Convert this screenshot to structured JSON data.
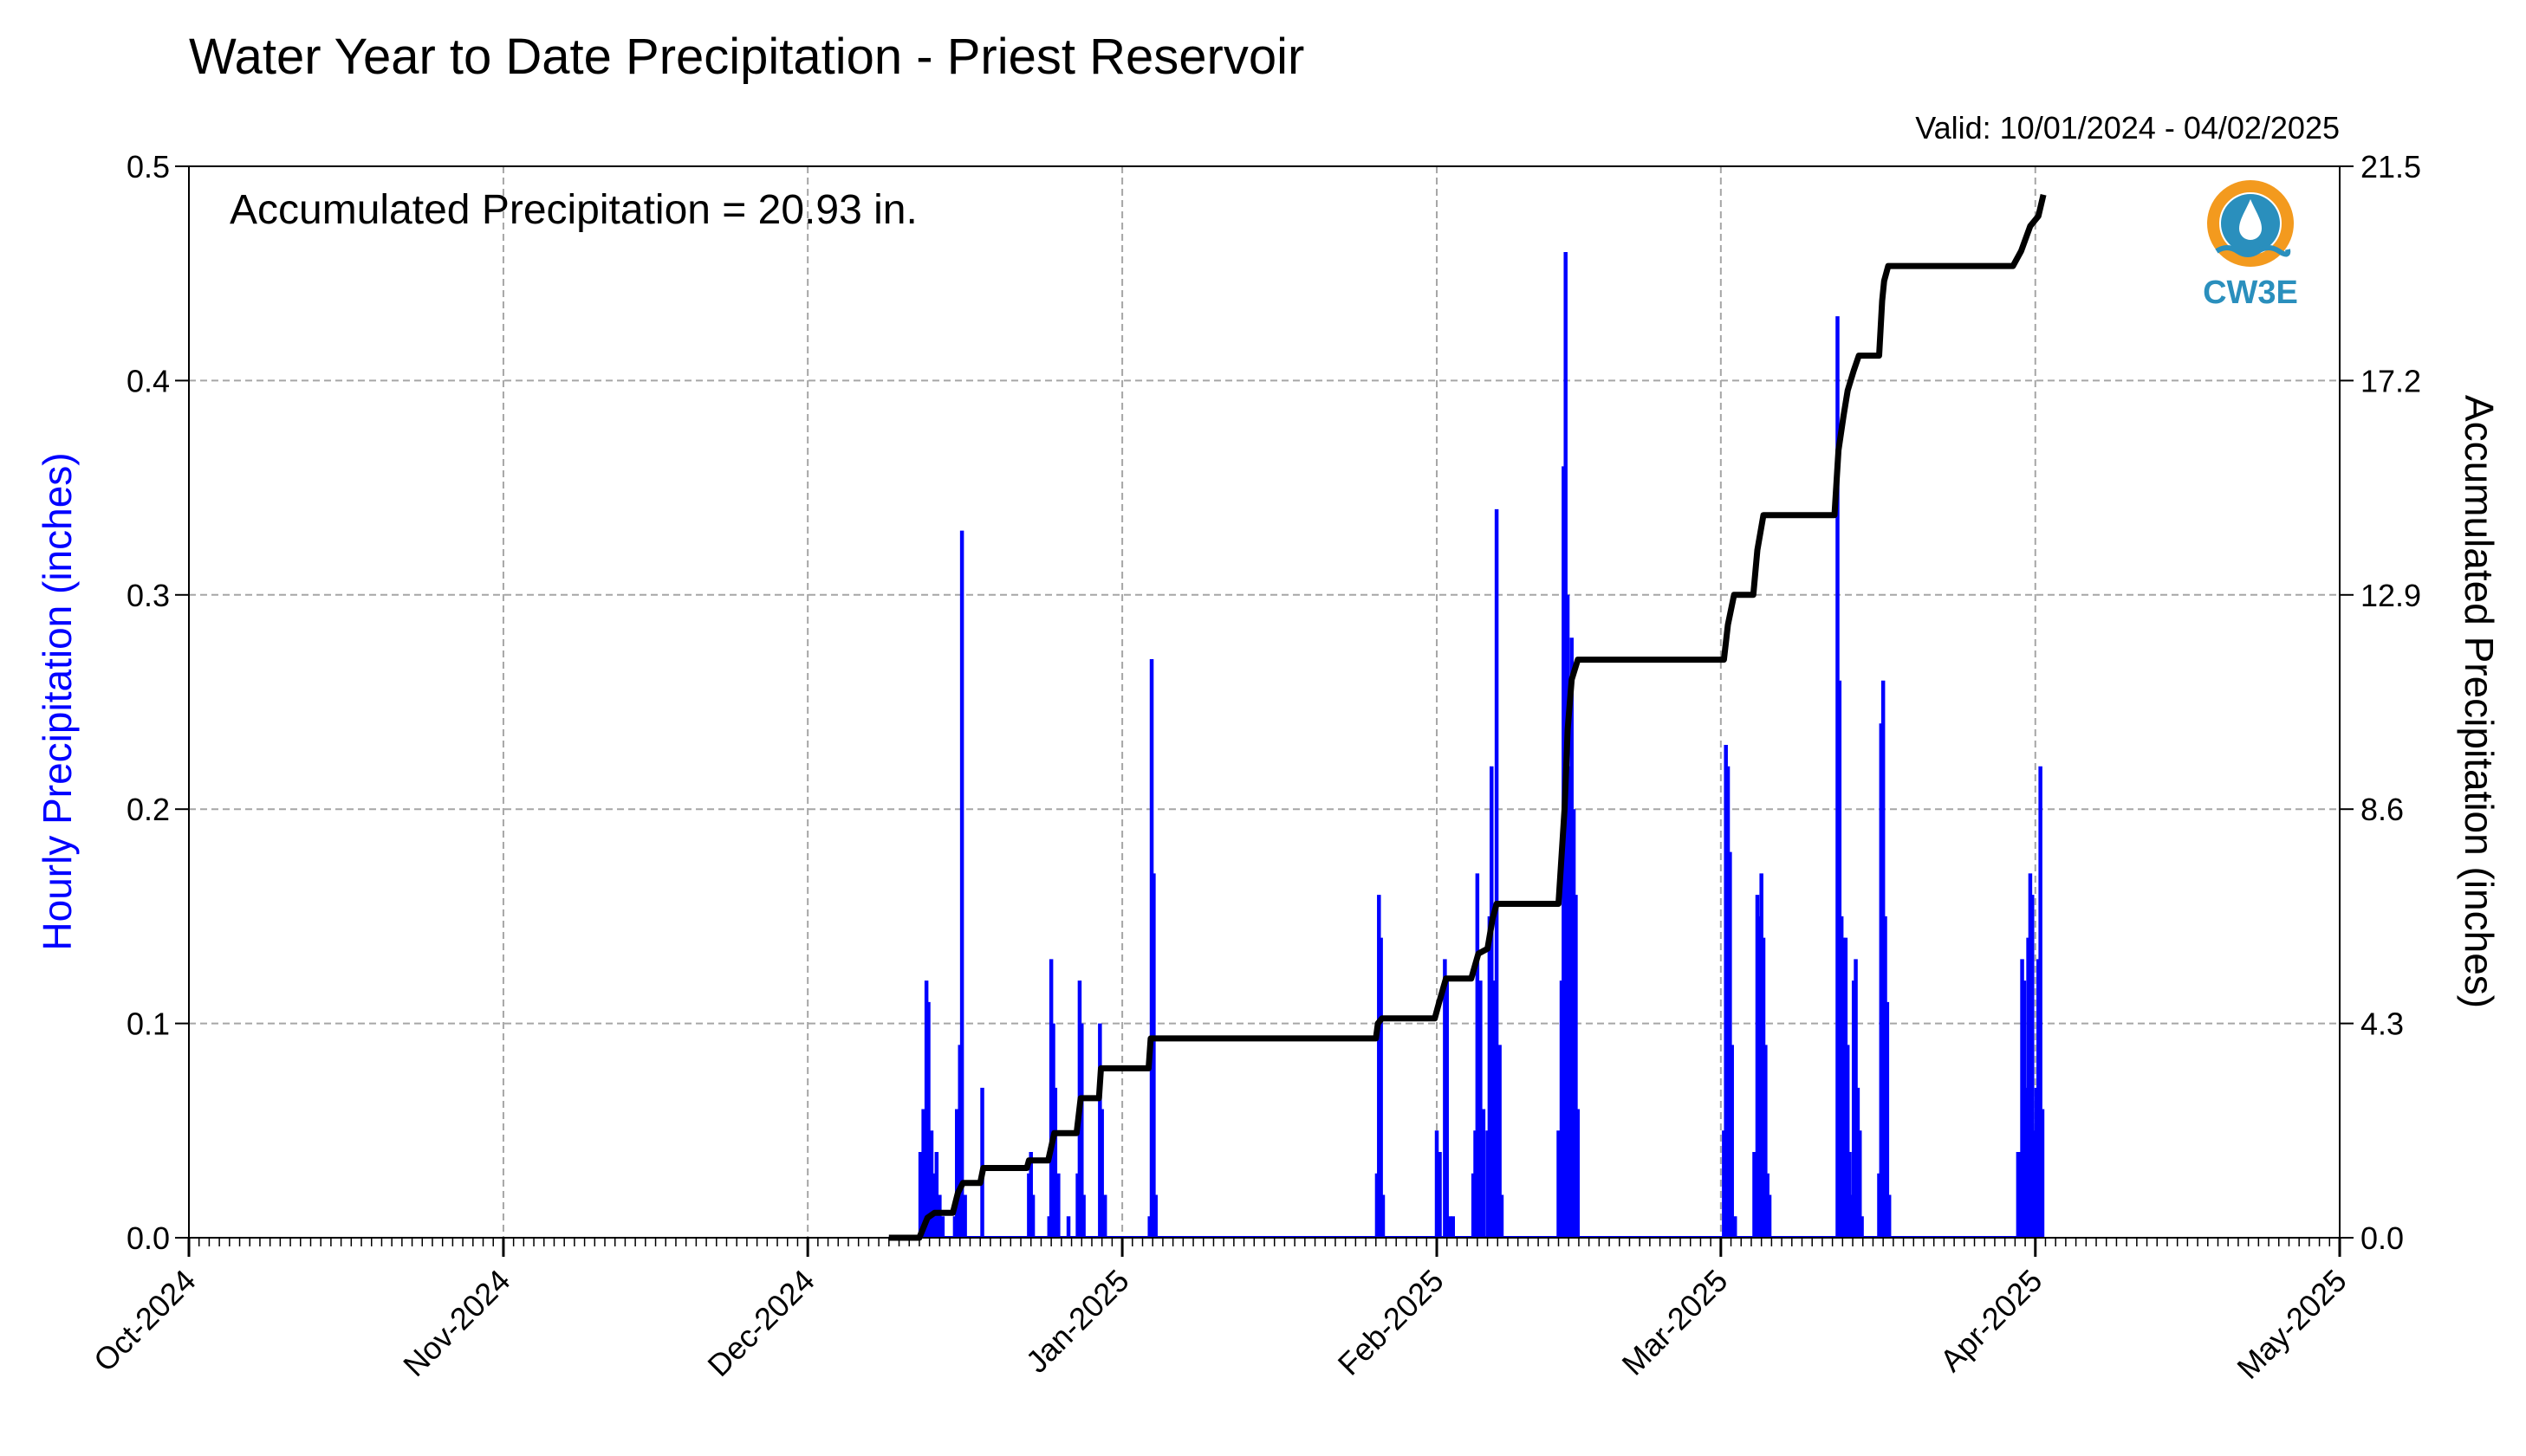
{
  "chart_data": {
    "type": "bar",
    "title": "Water Year to Date Precipitation - Priest Reservoir",
    "subtitle": "Valid: 10/01/2024 - 04/02/2025",
    "annotation": "Accumulated Precipitation = 20.93 in.",
    "logo_text": "CW3E",
    "ylabel_left": "Hourly Precipitation (inches)",
    "ylabel_right": "Accumulated Precipitation (inches)",
    "x_ticks": [
      "Oct-2024",
      "Nov-2024",
      "Dec-2024",
      "Jan-2025",
      "Feb-2025",
      "Mar-2025",
      "Apr-2025",
      "May-2025"
    ],
    "x_tick_days": [
      0,
      31,
      61,
      92,
      123,
      151,
      182,
      212
    ],
    "xlim_days": [
      0,
      212
    ],
    "y_left_ticks": [
      "0.0",
      "0.1",
      "0.2",
      "0.3",
      "0.4",
      "0.5"
    ],
    "y_left_lim": [
      0,
      0.5
    ],
    "y_right_ticks": [
      "0.0",
      "4.3",
      "8.6",
      "12.9",
      "17.2",
      "21.5"
    ],
    "y_right_lim": [
      0,
      21.5
    ],
    "grid": true,
    "colors": {
      "hourly": "#0000ff",
      "accumulated": "#000000",
      "logo": "#2a8fbd",
      "logo_sun": "#f39a1e"
    },
    "series": [
      {
        "name": "Hourly Precipitation",
        "type": "bar",
        "points": [
          [
            72.1,
            0.04
          ],
          [
            72.4,
            0.06
          ],
          [
            72.7,
            0.12
          ],
          [
            72.9,
            0.11
          ],
          [
            73.2,
            0.05
          ],
          [
            73.5,
            0.03
          ],
          [
            73.7,
            0.04
          ],
          [
            74.0,
            0.02
          ],
          [
            74.3,
            0.01
          ],
          [
            75.5,
            0.01
          ],
          [
            75.7,
            0.06
          ],
          [
            76.0,
            0.09
          ],
          [
            76.2,
            0.33
          ],
          [
            76.5,
            0.02
          ],
          [
            78.2,
            0.07
          ],
          [
            82.8,
            0.03
          ],
          [
            83.0,
            0.04
          ],
          [
            83.2,
            0.02
          ],
          [
            84.8,
            0.01
          ],
          [
            85.0,
            0.13
          ],
          [
            85.2,
            0.1
          ],
          [
            85.4,
            0.07
          ],
          [
            85.7,
            0.03
          ],
          [
            86.7,
            0.01
          ],
          [
            87.6,
            0.03
          ],
          [
            87.8,
            0.12
          ],
          [
            88.0,
            0.1
          ],
          [
            88.2,
            0.02
          ],
          [
            89.8,
            0.1
          ],
          [
            90.0,
            0.06
          ],
          [
            90.3,
            0.02
          ],
          [
            94.7,
            0.01
          ],
          [
            94.9,
            0.27
          ],
          [
            95.1,
            0.17
          ],
          [
            95.3,
            0.02
          ],
          [
            117.1,
            0.03
          ],
          [
            117.3,
            0.16
          ],
          [
            117.5,
            0.14
          ],
          [
            117.7,
            0.02
          ],
          [
            123.0,
            0.05
          ],
          [
            123.3,
            0.04
          ],
          [
            123.8,
            0.13
          ],
          [
            124.0,
            0.12
          ],
          [
            124.3,
            0.01
          ],
          [
            124.6,
            0.01
          ],
          [
            126.6,
            0.03
          ],
          [
            126.8,
            0.05
          ],
          [
            127.0,
            0.17
          ],
          [
            127.3,
            0.12
          ],
          [
            127.6,
            0.06
          ],
          [
            128.0,
            0.05
          ],
          [
            128.2,
            0.15
          ],
          [
            128.4,
            0.22
          ],
          [
            128.7,
            0.12
          ],
          [
            128.9,
            0.34
          ],
          [
            129.2,
            0.09
          ],
          [
            129.4,
            0.02
          ],
          [
            135.0,
            0.05
          ],
          [
            135.3,
            0.12
          ],
          [
            135.5,
            0.36
          ],
          [
            135.7,
            0.46
          ],
          [
            135.9,
            0.3
          ],
          [
            136.1,
            0.22
          ],
          [
            136.3,
            0.28
          ],
          [
            136.5,
            0.2
          ],
          [
            136.7,
            0.16
          ],
          [
            136.9,
            0.06
          ],
          [
            151.3,
            0.05
          ],
          [
            151.5,
            0.23
          ],
          [
            151.7,
            0.22
          ],
          [
            151.9,
            0.18
          ],
          [
            152.1,
            0.09
          ],
          [
            152.4,
            0.01
          ],
          [
            154.3,
            0.04
          ],
          [
            154.6,
            0.16
          ],
          [
            154.8,
            0.15
          ],
          [
            155.0,
            0.17
          ],
          [
            155.2,
            0.14
          ],
          [
            155.4,
            0.09
          ],
          [
            155.6,
            0.03
          ],
          [
            155.8,
            0.02
          ],
          [
            162.5,
            0.43
          ],
          [
            162.7,
            0.26
          ],
          [
            162.9,
            0.15
          ],
          [
            163.1,
            0.14
          ],
          [
            163.3,
            0.14
          ],
          [
            163.5,
            0.09
          ],
          [
            163.7,
            0.04
          ],
          [
            163.9,
            0.02
          ],
          [
            164.1,
            0.12
          ],
          [
            164.3,
            0.13
          ],
          [
            164.5,
            0.07
          ],
          [
            164.7,
            0.05
          ],
          [
            164.9,
            0.01
          ],
          [
            166.6,
            0.03
          ],
          [
            166.8,
            0.24
          ],
          [
            167.0,
            0.26
          ],
          [
            167.2,
            0.15
          ],
          [
            167.4,
            0.11
          ],
          [
            167.6,
            0.02
          ],
          [
            180.3,
            0.04
          ],
          [
            180.5,
            0.04
          ],
          [
            180.7,
            0.13
          ],
          [
            180.9,
            0.12
          ],
          [
            181.1,
            0.07
          ],
          [
            181.3,
            0.14
          ],
          [
            181.5,
            0.17
          ],
          [
            181.7,
            0.16
          ],
          [
            181.9,
            0.05
          ],
          [
            182.1,
            0.07
          ],
          [
            182.3,
            0.13
          ],
          [
            182.5,
            0.22
          ],
          [
            182.7,
            0.06
          ]
        ]
      },
      {
        "name": "Accumulated Precipitation",
        "type": "line",
        "points": [
          [
            69,
            0
          ],
          [
            72,
            0
          ],
          [
            72.8,
            0.4
          ],
          [
            73.5,
            0.5
          ],
          [
            75.3,
            0.5
          ],
          [
            75.8,
            0.9
          ],
          [
            76.3,
            1.1
          ],
          [
            78,
            1.1
          ],
          [
            78.3,
            1.4
          ],
          [
            82.6,
            1.4
          ],
          [
            82.8,
            1.55
          ],
          [
            84.7,
            1.55
          ],
          [
            85.3,
            2.1
          ],
          [
            87.5,
            2.1
          ],
          [
            87.9,
            2.8
          ],
          [
            89.7,
            2.8
          ],
          [
            89.9,
            3.4
          ],
          [
            94.6,
            3.4
          ],
          [
            94.8,
            4.0
          ],
          [
            117,
            4.0
          ],
          [
            117.2,
            4.3
          ],
          [
            117.6,
            4.4
          ],
          [
            122.8,
            4.4
          ],
          [
            123.2,
            4.7
          ],
          [
            123.9,
            5.2
          ],
          [
            126.4,
            5.2
          ],
          [
            127.1,
            5.7
          ],
          [
            128,
            5.8
          ],
          [
            128.5,
            6.4
          ],
          [
            128.9,
            6.7
          ],
          [
            135,
            6.7
          ],
          [
            135.6,
            8.6
          ],
          [
            135.9,
            10.2
          ],
          [
            136.3,
            11.2
          ],
          [
            136.9,
            11.6
          ],
          [
            151.3,
            11.6
          ],
          [
            151.7,
            12.3
          ],
          [
            152.3,
            12.9
          ],
          [
            154.2,
            12.9
          ],
          [
            154.6,
            13.8
          ],
          [
            155.2,
            14.5
          ],
          [
            162.2,
            14.5
          ],
          [
            162.6,
            15.8
          ],
          [
            163.1,
            16.5
          ],
          [
            163.5,
            17.0
          ],
          [
            164.1,
            17.4
          ],
          [
            164.6,
            17.7
          ],
          [
            166.6,
            17.7
          ],
          [
            166.9,
            18.8
          ],
          [
            167.1,
            19.2
          ],
          [
            167.5,
            19.5
          ],
          [
            179.8,
            19.5
          ],
          [
            180.6,
            19.8
          ],
          [
            181.5,
            20.3
          ],
          [
            182.3,
            20.5
          ],
          [
            182.8,
            20.93
          ]
        ]
      }
    ]
  }
}
